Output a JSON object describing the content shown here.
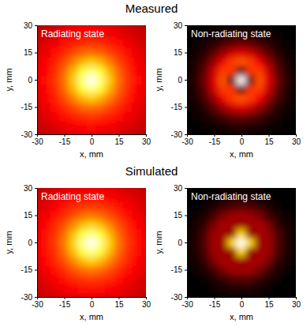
{
  "headings": [
    "Measured",
    "Simulated"
  ],
  "chart_data": [
    {
      "type": "heatmap",
      "title": "Radiating state",
      "x_label": "x, mm",
      "y_label": "y, mm",
      "xlim": [
        -30,
        30
      ],
      "ylim": [
        -30,
        30
      ],
      "xticks": [
        -30,
        -15,
        0,
        15,
        30
      ],
      "yticks": [
        -30,
        -15,
        0,
        15,
        30
      ],
      "grid": false,
      "zlim": [
        0,
        1
      ],
      "x": [
        -30,
        -25,
        -20,
        -15,
        -10,
        -5,
        0,
        5,
        10,
        15,
        20,
        25,
        30
      ],
      "y": [
        -30,
        -25,
        -20,
        -15,
        -10,
        -5,
        0,
        5,
        10,
        15,
        20,
        25,
        30
      ],
      "cells": [
        [
          0.27,
          0.29,
          0.3,
          0.32,
          0.33,
          0.34,
          0.35,
          0.34,
          0.33,
          0.32,
          0.3,
          0.29,
          0.27
        ],
        [
          0.29,
          0.31,
          0.33,
          0.35,
          0.37,
          0.38,
          0.39,
          0.38,
          0.37,
          0.35,
          0.33,
          0.31,
          0.29
        ],
        [
          0.3,
          0.33,
          0.36,
          0.39,
          0.42,
          0.44,
          0.45,
          0.44,
          0.42,
          0.39,
          0.36,
          0.33,
          0.3
        ],
        [
          0.32,
          0.35,
          0.39,
          0.43,
          0.48,
          0.52,
          0.54,
          0.52,
          0.48,
          0.43,
          0.39,
          0.35,
          0.32
        ],
        [
          0.33,
          0.37,
          0.42,
          0.48,
          0.56,
          0.64,
          0.68,
          0.64,
          0.56,
          0.48,
          0.42,
          0.37,
          0.33
        ],
        [
          0.34,
          0.38,
          0.44,
          0.52,
          0.64,
          0.8,
          0.88,
          0.8,
          0.64,
          0.52,
          0.44,
          0.38,
          0.34
        ],
        [
          0.35,
          0.39,
          0.45,
          0.54,
          0.68,
          0.88,
          1.0,
          0.88,
          0.68,
          0.54,
          0.45,
          0.39,
          0.35
        ],
        [
          0.34,
          0.38,
          0.44,
          0.52,
          0.64,
          0.8,
          0.88,
          0.8,
          0.64,
          0.52,
          0.44,
          0.38,
          0.34
        ],
        [
          0.33,
          0.37,
          0.42,
          0.48,
          0.56,
          0.64,
          0.68,
          0.64,
          0.56,
          0.48,
          0.42,
          0.37,
          0.33
        ],
        [
          0.32,
          0.35,
          0.39,
          0.43,
          0.48,
          0.52,
          0.54,
          0.52,
          0.48,
          0.43,
          0.39,
          0.35,
          0.32
        ],
        [
          0.3,
          0.33,
          0.36,
          0.39,
          0.42,
          0.44,
          0.45,
          0.44,
          0.42,
          0.39,
          0.36,
          0.33,
          0.3
        ],
        [
          0.29,
          0.31,
          0.33,
          0.35,
          0.37,
          0.38,
          0.39,
          0.38,
          0.37,
          0.35,
          0.33,
          0.31,
          0.29
        ],
        [
          0.27,
          0.29,
          0.3,
          0.32,
          0.33,
          0.34,
          0.35,
          0.34,
          0.33,
          0.32,
          0.3,
          0.29,
          0.27
        ]
      ]
    },
    {
      "type": "heatmap",
      "title": "Non-radiating state",
      "x_label": "x, mm",
      "y_label": "y, mm",
      "xlim": [
        -30,
        30
      ],
      "ylim": [
        -30,
        30
      ],
      "xticks": [
        -30,
        -15,
        0,
        15,
        30
      ],
      "yticks": [
        -30,
        -15,
        0,
        15,
        30
      ],
      "grid": false,
      "zlim": [
        0,
        1
      ],
      "x": [
        -30,
        -25,
        -20,
        -15,
        -10,
        -5,
        0,
        5,
        10,
        15,
        20,
        25,
        30
      ],
      "y": [
        -30,
        -25,
        -20,
        -15,
        -10,
        -5,
        0,
        5,
        10,
        15,
        20,
        25,
        30
      ],
      "cells": [
        [
          0,
          0,
          0,
          0.01,
          0.01,
          0.02,
          0.02,
          0.02,
          0.01,
          0.01,
          0,
          0,
          0
        ],
        [
          0,
          0,
          0.01,
          0.02,
          0.04,
          0.05,
          0.06,
          0.05,
          0.04,
          0.02,
          0.01,
          0,
          0
        ],
        [
          0,
          0.01,
          0.03,
          0.06,
          0.1,
          0.14,
          0.16,
          0.14,
          0.1,
          0.06,
          0.03,
          0.01,
          0
        ],
        [
          0.01,
          0.02,
          0.06,
          0.13,
          0.22,
          0.3,
          0.33,
          0.3,
          0.22,
          0.13,
          0.06,
          0.02,
          0.01
        ],
        [
          0.01,
          0.04,
          0.1,
          0.22,
          0.36,
          0.46,
          0.5,
          0.46,
          0.36,
          0.22,
          0.1,
          0.04,
          0.01
        ],
        [
          0.02,
          0.05,
          0.14,
          0.3,
          0.46,
          0.45,
          0.08,
          0.45,
          0.46,
          0.3,
          0.14,
          0.05,
          0.02
        ],
        [
          0.02,
          0.06,
          0.16,
          0.33,
          0.5,
          0.08,
          1.0,
          0.08,
          0.5,
          0.33,
          0.16,
          0.06,
          0.02
        ],
        [
          0.02,
          0.05,
          0.14,
          0.3,
          0.46,
          0.45,
          0.08,
          0.45,
          0.46,
          0.3,
          0.14,
          0.05,
          0.02
        ],
        [
          0.01,
          0.04,
          0.1,
          0.22,
          0.36,
          0.46,
          0.5,
          0.46,
          0.36,
          0.22,
          0.1,
          0.04,
          0.01
        ],
        [
          0.01,
          0.02,
          0.06,
          0.13,
          0.22,
          0.3,
          0.33,
          0.3,
          0.22,
          0.13,
          0.06,
          0.02,
          0.01
        ],
        [
          0,
          0.01,
          0.03,
          0.06,
          0.1,
          0.14,
          0.16,
          0.14,
          0.1,
          0.06,
          0.03,
          0.01,
          0
        ],
        [
          0,
          0,
          0.01,
          0.02,
          0.04,
          0.05,
          0.06,
          0.05,
          0.04,
          0.02,
          0.01,
          0,
          0
        ],
        [
          0,
          0,
          0,
          0.01,
          0.01,
          0.02,
          0.02,
          0.02,
          0.01,
          0.01,
          0,
          0,
          0
        ]
      ]
    },
    {
      "type": "heatmap",
      "title": "Radiating state",
      "x_label": "x, mm",
      "y_label": "y, mm",
      "xlim": [
        -30,
        30
      ],
      "ylim": [
        -30,
        30
      ],
      "xticks": [
        -30,
        -15,
        0,
        15,
        30
      ],
      "yticks": [
        -30,
        -15,
        0,
        15,
        30
      ],
      "grid": false,
      "zlim": [
        0,
        1
      ],
      "x": [
        -30,
        -25,
        -20,
        -15,
        -10,
        -5,
        0,
        5,
        10,
        15,
        20,
        25,
        30
      ],
      "y": [
        -30,
        -25,
        -20,
        -15,
        -10,
        -5,
        0,
        5,
        10,
        15,
        20,
        25,
        30
      ],
      "cells": [
        [
          0.28,
          0.3,
          0.31,
          0.33,
          0.34,
          0.35,
          0.36,
          0.35,
          0.34,
          0.33,
          0.31,
          0.3,
          0.28
        ],
        [
          0.3,
          0.32,
          0.34,
          0.36,
          0.38,
          0.39,
          0.4,
          0.39,
          0.38,
          0.36,
          0.34,
          0.32,
          0.3
        ],
        [
          0.31,
          0.34,
          0.37,
          0.4,
          0.43,
          0.45,
          0.46,
          0.45,
          0.43,
          0.4,
          0.37,
          0.34,
          0.31
        ],
        [
          0.33,
          0.36,
          0.4,
          0.44,
          0.49,
          0.53,
          0.55,
          0.53,
          0.49,
          0.44,
          0.4,
          0.36,
          0.33
        ],
        [
          0.34,
          0.38,
          0.43,
          0.49,
          0.57,
          0.65,
          0.69,
          0.65,
          0.57,
          0.49,
          0.43,
          0.38,
          0.34
        ],
        [
          0.35,
          0.39,
          0.45,
          0.53,
          0.65,
          0.81,
          0.89,
          0.81,
          0.65,
          0.53,
          0.45,
          0.39,
          0.35
        ],
        [
          0.36,
          0.4,
          0.46,
          0.55,
          0.69,
          0.89,
          1.0,
          0.89,
          0.69,
          0.55,
          0.46,
          0.4,
          0.36
        ],
        [
          0.35,
          0.39,
          0.45,
          0.53,
          0.65,
          0.81,
          0.89,
          0.81,
          0.65,
          0.53,
          0.45,
          0.39,
          0.35
        ],
        [
          0.34,
          0.38,
          0.43,
          0.49,
          0.57,
          0.65,
          0.69,
          0.65,
          0.57,
          0.49,
          0.43,
          0.38,
          0.34
        ],
        [
          0.33,
          0.36,
          0.4,
          0.44,
          0.49,
          0.53,
          0.55,
          0.53,
          0.49,
          0.44,
          0.4,
          0.36,
          0.33
        ],
        [
          0.31,
          0.34,
          0.37,
          0.4,
          0.43,
          0.45,
          0.46,
          0.45,
          0.43,
          0.4,
          0.37,
          0.34,
          0.31
        ],
        [
          0.3,
          0.32,
          0.34,
          0.36,
          0.38,
          0.39,
          0.4,
          0.39,
          0.38,
          0.36,
          0.34,
          0.32,
          0.3
        ],
        [
          0.28,
          0.3,
          0.31,
          0.33,
          0.34,
          0.35,
          0.36,
          0.35,
          0.34,
          0.33,
          0.31,
          0.3,
          0.28
        ]
      ]
    },
    {
      "type": "heatmap",
      "title": "Non-radiating state",
      "x_label": "x, mm",
      "y_label": "y, mm",
      "xlim": [
        -30,
        30
      ],
      "ylim": [
        -30,
        30
      ],
      "xticks": [
        -30,
        -15,
        0,
        15,
        30
      ],
      "yticks": [
        -30,
        -15,
        0,
        15,
        30
      ],
      "grid": false,
      "zlim": [
        0,
        1
      ],
      "x": [
        -30,
        -25,
        -20,
        -15,
        -10,
        -5,
        0,
        5,
        10,
        15,
        20,
        25,
        30
      ],
      "y": [
        -30,
        -25,
        -20,
        -15,
        -10,
        -5,
        0,
        5,
        10,
        15,
        20,
        25,
        30
      ],
      "cells": [
        [
          0,
          0,
          0,
          0,
          0.01,
          0.01,
          0.01,
          0.01,
          0.01,
          0,
          0,
          0,
          0
        ],
        [
          0,
          0,
          0,
          0.02,
          0.03,
          0.04,
          0.04,
          0.04,
          0.03,
          0.02,
          0,
          0,
          0
        ],
        [
          0,
          0,
          0.02,
          0.04,
          0.08,
          0.11,
          0.12,
          0.11,
          0.08,
          0.04,
          0.02,
          0,
          0
        ],
        [
          0,
          0.02,
          0.04,
          0.1,
          0.18,
          0.23,
          0.24,
          0.23,
          0.18,
          0.1,
          0.04,
          0.02,
          0
        ],
        [
          0.01,
          0.03,
          0.08,
          0.18,
          0.25,
          0.24,
          0.22,
          0.24,
          0.25,
          0.18,
          0.08,
          0.03,
          0.01
        ],
        [
          0.01,
          0.04,
          0.11,
          0.23,
          0.24,
          0.2,
          0.7,
          0.2,
          0.24,
          0.23,
          0.11,
          0.04,
          0.01
        ],
        [
          0.01,
          0.04,
          0.12,
          0.24,
          0.22,
          0.7,
          1.0,
          0.7,
          0.22,
          0.24,
          0.12,
          0.04,
          0.01
        ],
        [
          0.01,
          0.04,
          0.11,
          0.23,
          0.24,
          0.2,
          0.7,
          0.2,
          0.24,
          0.23,
          0.11,
          0.04,
          0.01
        ],
        [
          0.01,
          0.03,
          0.08,
          0.18,
          0.25,
          0.24,
          0.22,
          0.24,
          0.25,
          0.18,
          0.08,
          0.03,
          0.01
        ],
        [
          0,
          0.02,
          0.04,
          0.1,
          0.18,
          0.23,
          0.24,
          0.23,
          0.18,
          0.1,
          0.04,
          0.02,
          0
        ],
        [
          0,
          0,
          0.02,
          0.04,
          0.08,
          0.11,
          0.12,
          0.11,
          0.08,
          0.04,
          0.02,
          0,
          0
        ],
        [
          0,
          0,
          0,
          0.02,
          0.03,
          0.04,
          0.04,
          0.04,
          0.03,
          0.02,
          0,
          0,
          0
        ],
        [
          0,
          0,
          0,
          0,
          0.01,
          0.01,
          0.01,
          0.01,
          0.01,
          0,
          0,
          0,
          0
        ]
      ]
    }
  ]
}
